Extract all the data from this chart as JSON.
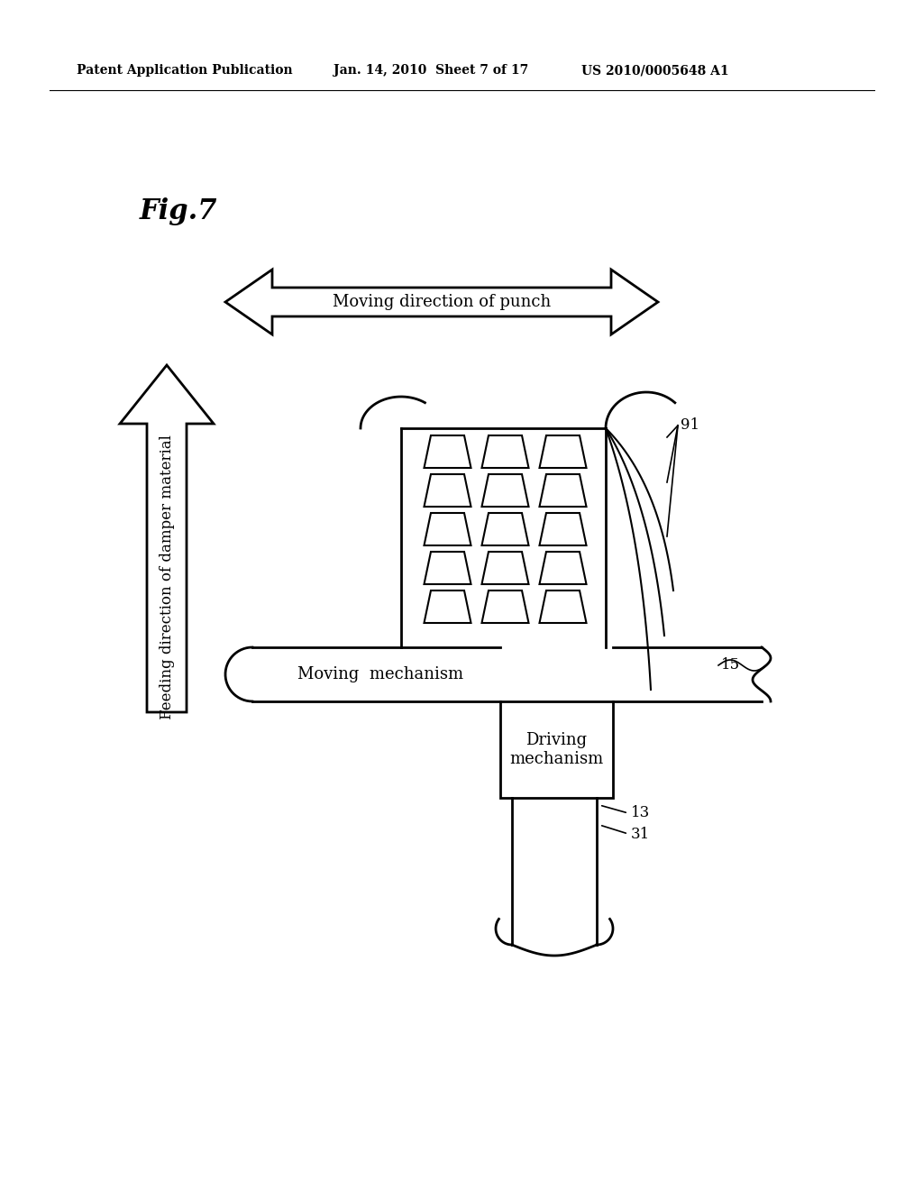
{
  "bg_color": "#ffffff",
  "fig_label": "Fig.7",
  "header_left": "Patent Application Publication",
  "header_mid": "Jan. 14, 2010  Sheet 7 of 17",
  "header_right": "US 2010/0005648 A1",
  "double_arrow_label": "Moving direction of punch",
  "up_arrow_label": "Feeding direction of damper material",
  "moving_mech_label": "Moving  mechanism",
  "driving_mech_label": "Driving\nmechanism",
  "label_91": "91",
  "label_15": "15",
  "label_13": "13",
  "label_31": "31"
}
